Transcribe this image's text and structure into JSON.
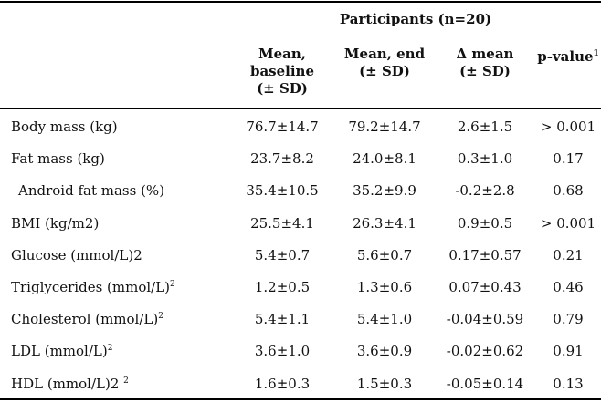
{
  "group_header": "Participants (n=20)",
  "columns": [
    {
      "l1": "Mean,",
      "l2": "baseline",
      "l3": "(± SD)",
      "sup": ""
    },
    {
      "l1": "Mean, end",
      "l2": "(± SD)",
      "l3": "",
      "sup": ""
    },
    {
      "l1": "Δ mean",
      "l2": "(± SD)",
      "l3": "",
      "sup": ""
    },
    {
      "l1": "p-value",
      "l2": "",
      "l3": "",
      "sup": "1"
    }
  ],
  "rows": [
    {
      "label": "Body mass (kg)",
      "sup": "",
      "baseline": "76.7±14.7",
      "end": "79.2±14.7",
      "delta": "2.6±1.5",
      "p": "> 0.001"
    },
    {
      "label": "Fat mass (kg)",
      "sup": "",
      "baseline": "23.7±8.2",
      "end": "24.0±8.1",
      "delta": "0.3±1.0",
      "p": "0.17"
    },
    {
      "label": "Android fat mass (%)",
      "sup": "",
      "baseline": "35.4±10.5",
      "end": "35.2±9.9",
      "delta": "-0.2±2.8",
      "p": "0.68"
    },
    {
      "label": "BMI (kg/m2)",
      "sup": "",
      "baseline": "25.5±4.1",
      "end": "26.3±4.1",
      "delta": "0.9±0.5",
      "p": "> 0.001"
    },
    {
      "label": "Glucose (mmol/L)2",
      "sup": "",
      "baseline": "5.4±0.7",
      "end": "5.6±0.7",
      "delta": "0.17±0.57",
      "p": "0.21"
    },
    {
      "label": "Triglycerides (mmol/L)",
      "sup": "2",
      "baseline": "1.2±0.5",
      "end": "1.3±0.6",
      "delta": "0.07±0.43",
      "p": "0.46"
    },
    {
      "label": "Cholesterol (mmol/L)",
      "sup": "2",
      "baseline": "5.4±1.1",
      "end": "5.4±1.0",
      "delta": "-0.04±0.59",
      "p": "0.79"
    },
    {
      "label": "LDL (mmol/L)",
      "sup": "2",
      "baseline": "3.6±1.0",
      "end": "3.6±0.9",
      "delta": "-0.02±0.62",
      "p": "0.91"
    },
    {
      "label": "HDL (mmol/L)2 ",
      "sup": "2",
      "baseline": "1.6±0.3",
      "end": "1.5±0.3",
      "delta": "-0.05±0.14",
      "p": "0.13"
    }
  ]
}
